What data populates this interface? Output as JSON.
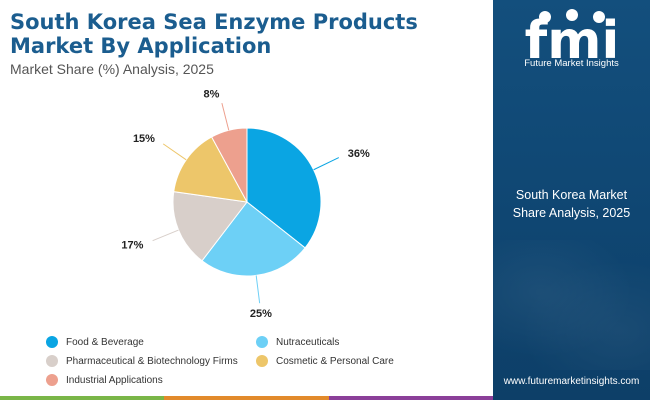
{
  "header": {
    "title": "South Korea Sea Enzyme Products Market By Application",
    "subtitle": "Market Share (%) Analysis, 2025"
  },
  "chart_data": {
    "type": "pie",
    "categories": [
      "Food & Beverage",
      "Nutraceuticals",
      "Pharmaceutical & Biotechnology Firms",
      "Cosmetic & Personal Care",
      "Industrial Applications"
    ],
    "values": [
      36,
      25,
      17,
      15,
      8
    ],
    "data_labels": [
      "36%",
      "25%",
      "17%",
      "15%",
      "8%"
    ],
    "colors": [
      "#0aa5e3",
      "#6dd0f6",
      "#d8cfca",
      "#edc66a",
      "#eda08e"
    ],
    "start_angle": "12 o'clock, clockwise",
    "legend_position": "bottom"
  },
  "sidebar": {
    "logo_text": "fmi",
    "logo_tagline": "Future Market Insights",
    "caption_line1": "South Korea Market",
    "caption_line2": "Share Analysis, 2025",
    "url": "www.futuremarketinsights.com",
    "background_color": "#134f7d"
  },
  "footer_bar_colors": [
    "#7ab648",
    "#e28a2b",
    "#8b3f99"
  ]
}
